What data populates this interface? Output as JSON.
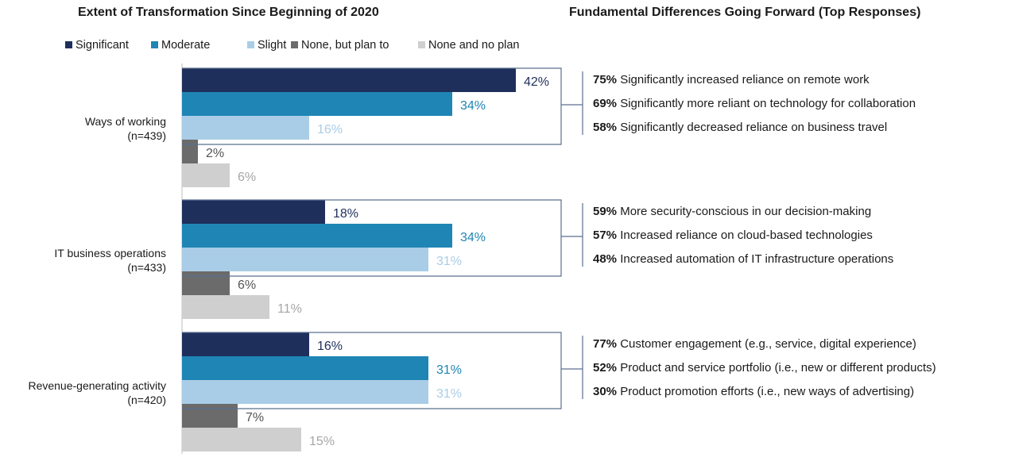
{
  "left_title": "Extent of Transformation Since Beginning of 2020",
  "right_title": "Fundamental Differences Going Forward (Top Responses)",
  "colors": {
    "Significant": "#1f2f5c",
    "Moderate": "#1f85b5",
    "Slight": "#a9cde6",
    "None, but plan to": "#6b6b6b",
    "None and no plan": "#cfcfcf",
    "bracket": "#5a6f8f"
  },
  "chart_data": {
    "type": "bar",
    "orientation": "horizontal",
    "title": "Extent of Transformation Since Beginning of 2020",
    "legend_position": "top",
    "xlim": [
      0,
      50
    ],
    "grid": false,
    "categories": [
      {
        "label": "Ways of working",
        "n": "(n=439)"
      },
      {
        "label": "IT business operations",
        "n": "(n=433)"
      },
      {
        "label": "Revenue-generating activity",
        "n": "(n=420)"
      }
    ],
    "series": [
      {
        "name": "Significant",
        "values": [
          42,
          18,
          16
        ],
        "labels": [
          "42%",
          "18%",
          "16%"
        ]
      },
      {
        "name": "Moderate",
        "values": [
          34,
          34,
          31
        ],
        "labels": [
          "34%",
          "34%",
          "31%"
        ]
      },
      {
        "name": "Slight",
        "values": [
          16,
          31,
          31
        ],
        "labels": [
          "16%",
          "31%",
          "31%"
        ]
      },
      {
        "name": "None, but plan to",
        "values": [
          2,
          6,
          7
        ],
        "labels": [
          "2%",
          "6%",
          "7%"
        ]
      },
      {
        "name": "None and no plan",
        "values": [
          6,
          11,
          15
        ],
        "labels": [
          "6%",
          "11%",
          "15%"
        ]
      }
    ]
  },
  "responses": [
    [
      {
        "pct": "75%",
        "text": "Significantly increased reliance on remote work"
      },
      {
        "pct": "69%",
        "text": "Significantly more reliant on technology for collaboration"
      },
      {
        "pct": "58%",
        "text": "Significantly decreased reliance on business travel"
      }
    ],
    [
      {
        "pct": "59%",
        "text": "More security-conscious in our decision-making"
      },
      {
        "pct": "57%",
        "text": "Increased reliance on cloud-based technologies"
      },
      {
        "pct": "48%",
        "text": "Increased automation of IT infrastructure operations"
      }
    ],
    [
      {
        "pct": "77%",
        "text": "Customer engagement (e.g., service, digital experience)"
      },
      {
        "pct": "52%",
        "text": "Product and service portfolio (i.e., new or different products)"
      },
      {
        "pct": "30%",
        "text": "Product promotion efforts (i.e., new ways of advertising)"
      }
    ]
  ]
}
